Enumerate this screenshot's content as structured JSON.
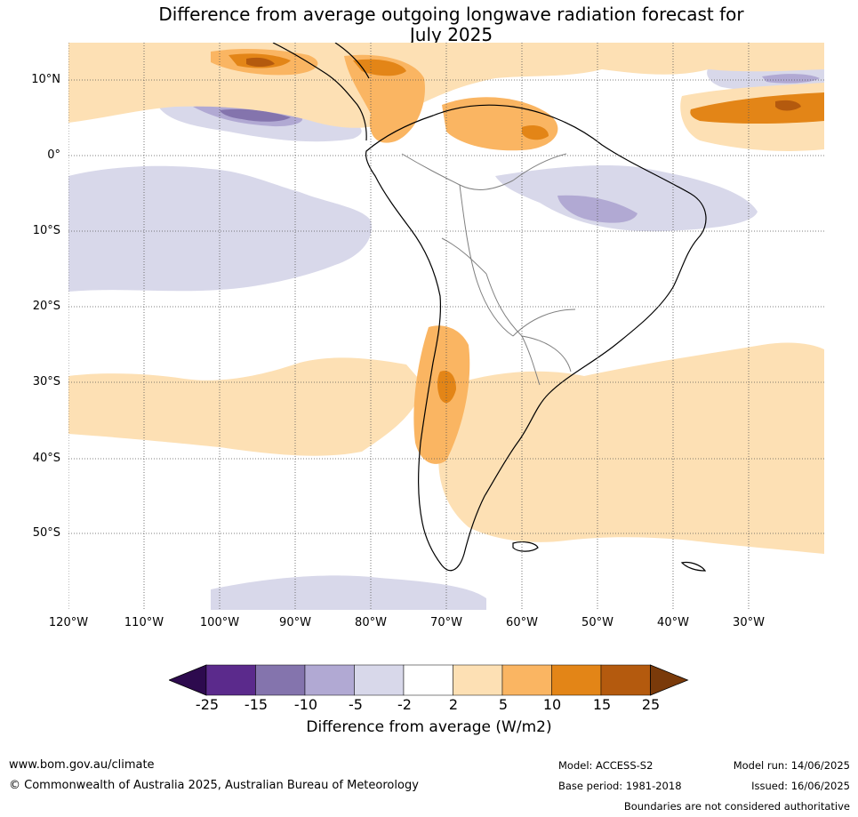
{
  "title": {
    "line1": "Difference from average outgoing longwave radiation forecast for",
    "line2": "July 2025"
  },
  "map": {
    "lat_labels": [
      "10°N",
      "0°",
      "10°S",
      "20°S",
      "30°S",
      "40°S",
      "50°S"
    ],
    "lon_labels": [
      "120°W",
      "110°W",
      "100°W",
      "90°W",
      "80°W",
      "70°W",
      "60°W",
      "50°W",
      "40°W",
      "30°W"
    ]
  },
  "colorbar": {
    "label": "Difference from average (W/m2)",
    "ticks": [
      "-25",
      "-15",
      "-10",
      "-5",
      "-2",
      "2",
      "5",
      "10",
      "15",
      "25"
    ],
    "colors": [
      "#2d0a4e",
      "#5b2a8c",
      "#8474ad",
      "#b1a9d3",
      "#d8d8ea",
      "#ffffff",
      "#fde0b4",
      "#fab562",
      "#e38517",
      "#b45a0e",
      "#7a3a0a"
    ]
  },
  "footer": {
    "url": "www.bom.gov.au/climate",
    "copyright": "© Commonwealth of Australia 2025, Australian Bureau of Meteorology",
    "model": "Model: ACCESS-S2",
    "base_period": "Base period: 1981-2018",
    "model_run": "Model run: 14/06/2025",
    "issued": "Issued: 16/06/2025",
    "disclaimer": "Boundaries are not considered authoritative"
  }
}
